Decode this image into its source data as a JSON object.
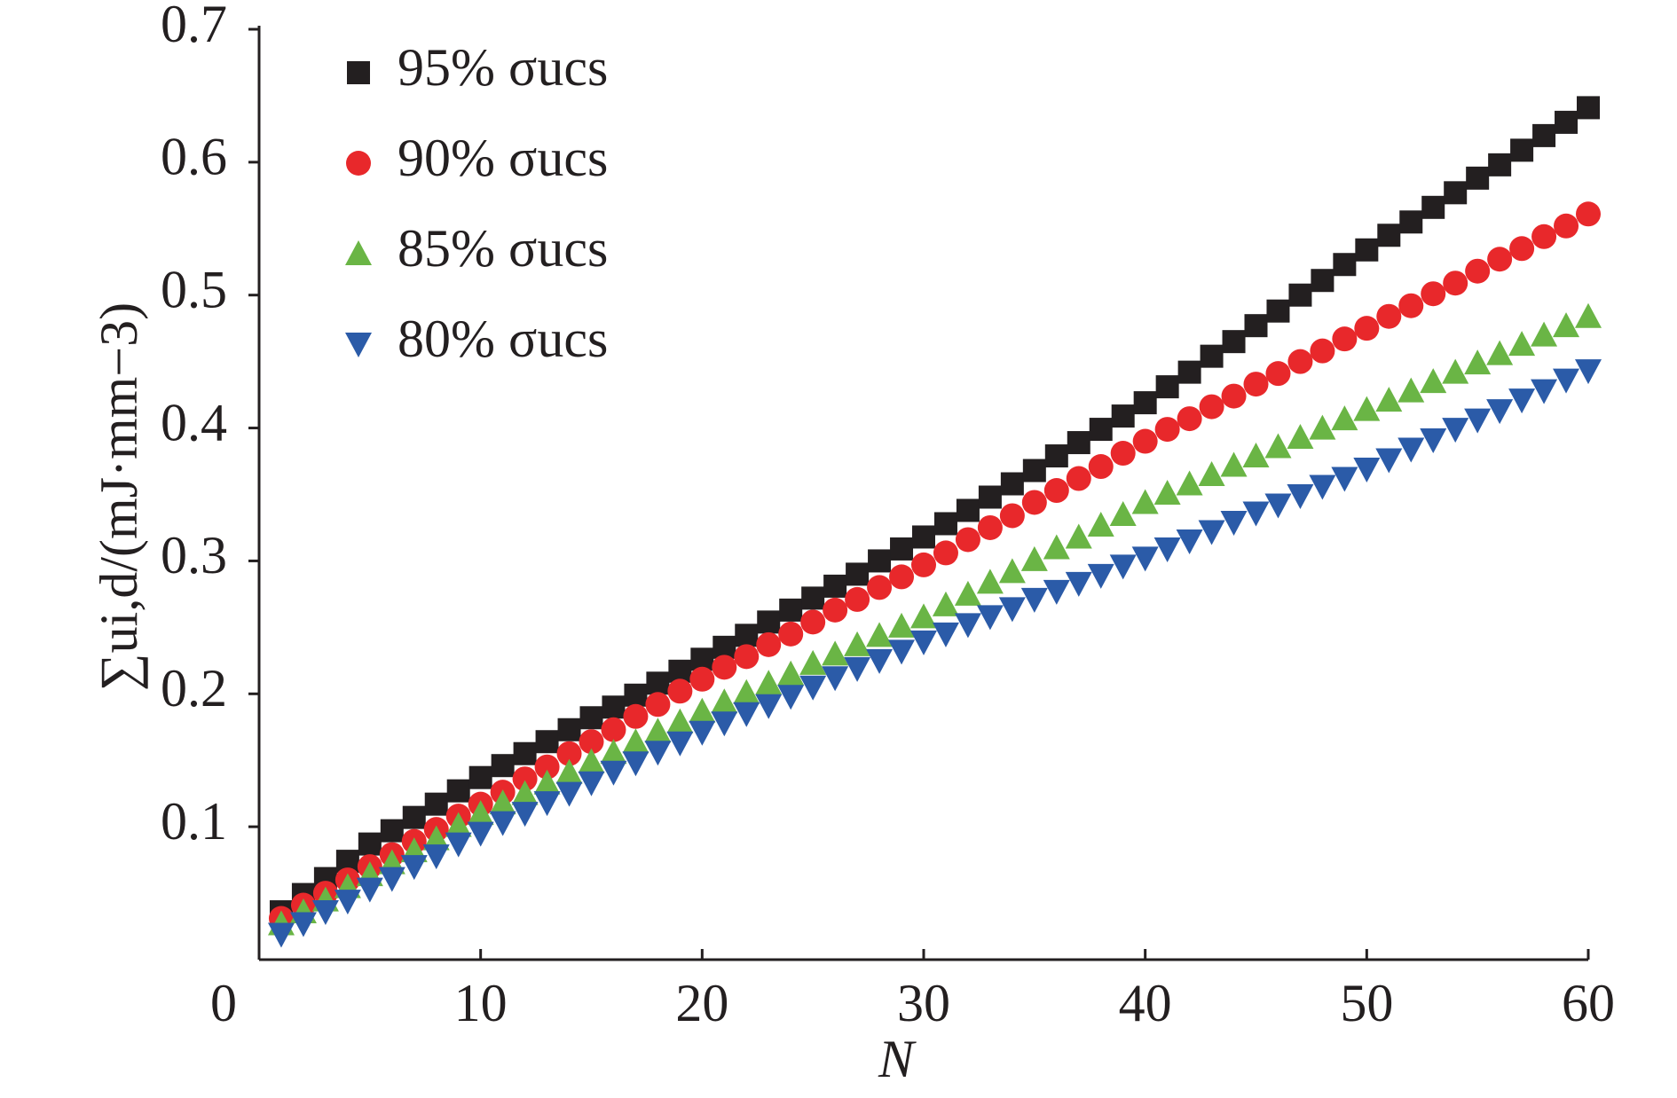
{
  "chart_data": {
    "type": "scatter",
    "x_label": "N",
    "y_label": "∑ui,d/(mJ·mm−3)",
    "x": [
      1,
      2,
      3,
      4,
      5,
      6,
      7,
      8,
      9,
      10,
      11,
      12,
      13,
      14,
      15,
      16,
      17,
      18,
      19,
      20,
      21,
      22,
      23,
      24,
      25,
      26,
      27,
      28,
      29,
      30,
      31,
      32,
      33,
      34,
      35,
      36,
      37,
      38,
      39,
      40,
      41,
      42,
      43,
      44,
      45,
      46,
      47,
      48,
      49,
      50,
      51,
      52,
      53,
      54,
      55,
      56,
      57,
      58,
      59,
      60
    ],
    "series": [
      {
        "name": "95% σucs",
        "color": "#231f20",
        "marker": "square",
        "values": [
          0.036,
          0.049,
          0.061,
          0.074,
          0.087,
          0.097,
          0.107,
          0.117,
          0.127,
          0.137,
          0.146,
          0.155,
          0.164,
          0.173,
          0.182,
          0.19,
          0.199,
          0.208,
          0.217,
          0.226,
          0.235,
          0.244,
          0.254,
          0.263,
          0.272,
          0.281,
          0.29,
          0.3,
          0.309,
          0.318,
          0.328,
          0.338,
          0.348,
          0.358,
          0.368,
          0.379,
          0.389,
          0.399,
          0.409,
          0.419,
          0.431,
          0.442,
          0.454,
          0.465,
          0.477,
          0.488,
          0.5,
          0.511,
          0.523,
          0.534,
          0.545,
          0.555,
          0.566,
          0.577,
          0.588,
          0.598,
          0.609,
          0.62,
          0.63,
          0.641
        ]
      },
      {
        "name": "90% σucs",
        "color": "#e8282b",
        "marker": "circle",
        "values": [
          0.031,
          0.041,
          0.05,
          0.06,
          0.07,
          0.079,
          0.089,
          0.098,
          0.108,
          0.117,
          0.126,
          0.136,
          0.145,
          0.155,
          0.164,
          0.173,
          0.183,
          0.192,
          0.202,
          0.211,
          0.22,
          0.228,
          0.237,
          0.245,
          0.254,
          0.263,
          0.271,
          0.28,
          0.288,
          0.297,
          0.306,
          0.316,
          0.325,
          0.334,
          0.344,
          0.353,
          0.362,
          0.371,
          0.381,
          0.39,
          0.399,
          0.407,
          0.416,
          0.424,
          0.433,
          0.441,
          0.45,
          0.458,
          0.467,
          0.475,
          0.484,
          0.492,
          0.501,
          0.509,
          0.518,
          0.527,
          0.535,
          0.544,
          0.552,
          0.561
        ]
      },
      {
        "name": "85% σucs",
        "color": "#6ab545",
        "marker": "triangle-up",
        "values": [
          0.027,
          0.036,
          0.045,
          0.055,
          0.064,
          0.073,
          0.082,
          0.091,
          0.101,
          0.11,
          0.118,
          0.125,
          0.133,
          0.141,
          0.149,
          0.156,
          0.164,
          0.172,
          0.179,
          0.187,
          0.194,
          0.201,
          0.208,
          0.215,
          0.223,
          0.23,
          0.237,
          0.244,
          0.251,
          0.258,
          0.267,
          0.275,
          0.284,
          0.292,
          0.301,
          0.31,
          0.318,
          0.327,
          0.335,
          0.344,
          0.351,
          0.358,
          0.365,
          0.372,
          0.379,
          0.386,
          0.393,
          0.4,
          0.407,
          0.414,
          0.421,
          0.428,
          0.435,
          0.442,
          0.449,
          0.456,
          0.463,
          0.47,
          0.477,
          0.484
        ]
      },
      {
        "name": "80% σucs",
        "color": "#2b5ba8",
        "marker": "triangle-down",
        "values": [
          0.019,
          0.027,
          0.036,
          0.044,
          0.053,
          0.061,
          0.07,
          0.078,
          0.087,
          0.095,
          0.103,
          0.11,
          0.118,
          0.125,
          0.133,
          0.141,
          0.148,
          0.156,
          0.163,
          0.171,
          0.178,
          0.185,
          0.191,
          0.198,
          0.205,
          0.212,
          0.219,
          0.225,
          0.232,
          0.239,
          0.245,
          0.252,
          0.258,
          0.264,
          0.271,
          0.277,
          0.283,
          0.289,
          0.296,
          0.302,
          0.309,
          0.315,
          0.322,
          0.329,
          0.336,
          0.342,
          0.349,
          0.356,
          0.362,
          0.369,
          0.376,
          0.384,
          0.391,
          0.399,
          0.406,
          0.413,
          0.421,
          0.428,
          0.436,
          0.443
        ]
      }
    ],
    "xlim": [
      0,
      60
    ],
    "xticks": [
      0,
      10,
      20,
      30,
      40,
      50,
      60
    ],
    "ylim": [
      0,
      0.7
    ],
    "yticks": [
      0.1,
      0.2,
      0.3,
      0.4,
      0.5,
      0.6,
      0.7
    ],
    "grid": false,
    "legend": "upper left"
  }
}
